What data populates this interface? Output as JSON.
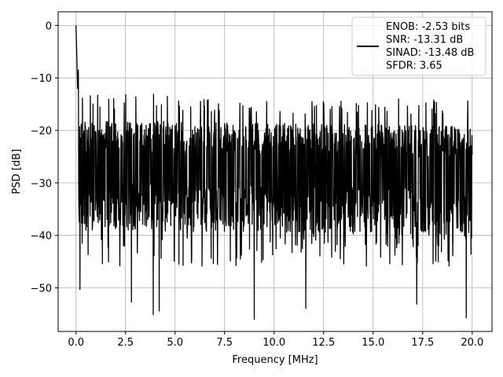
{
  "chart_data": {
    "type": "line",
    "title": "",
    "xlabel": "Frequency [MHz]",
    "ylabel": "PSD [dB]",
    "xlim": [
      -0.9,
      21.0
    ],
    "ylim": [
      -58.3,
      2.6
    ],
    "x_ticks": [
      0.0,
      2.5,
      5.0,
      7.5,
      10.0,
      12.5,
      15.0,
      17.5,
      20.0
    ],
    "x_tick_labels": [
      "0.0",
      "2.5",
      "5.0",
      "7.5",
      "10.0",
      "12.5",
      "15.0",
      "17.5",
      "20.0"
    ],
    "y_ticks": [
      0,
      -10,
      -20,
      -30,
      -40,
      -50
    ],
    "y_tick_labels": [
      "0",
      "−10",
      "−20",
      "−30",
      "−40",
      "−50"
    ],
    "grid": true,
    "legend_position": "top-right",
    "series": [
      {
        "color": "#000000",
        "line_style": "solid",
        "x_range": [
          0.0,
          20.0
        ],
        "envelope": {
          "peak": 0.0,
          "noise_floor_approx": -27,
          "upper_band_approx": -19,
          "lower_band_approx": -37,
          "deep_notches": [
            {
              "x": 0.2,
              "y": -50.3
            },
            {
              "x": 2.8,
              "y": -52.7
            },
            {
              "x": 3.9,
              "y": -55.1
            },
            {
              "x": 4.2,
              "y": -54.4
            },
            {
              "x": 9.0,
              "y": -56.0
            },
            {
              "x": 11.6,
              "y": -53.9
            },
            {
              "x": 17.2,
              "y": -53.1
            },
            {
              "x": 19.7,
              "y": -55.7
            }
          ],
          "near_dc_values": [
            {
              "x": 0.0,
              "y": 0.0
            },
            {
              "x": 0.03,
              "y": -4.0
            },
            {
              "x": 0.08,
              "y": -12.0
            },
            {
              "x": 0.12,
              "y": -8.5
            }
          ]
        }
      }
    ],
    "legend_lines": [
      "ENOB: -2.53 bits",
      "SNR: -13.31 dB",
      "SINAD: -13.48 dB",
      "SFDR: 3.65"
    ]
  }
}
